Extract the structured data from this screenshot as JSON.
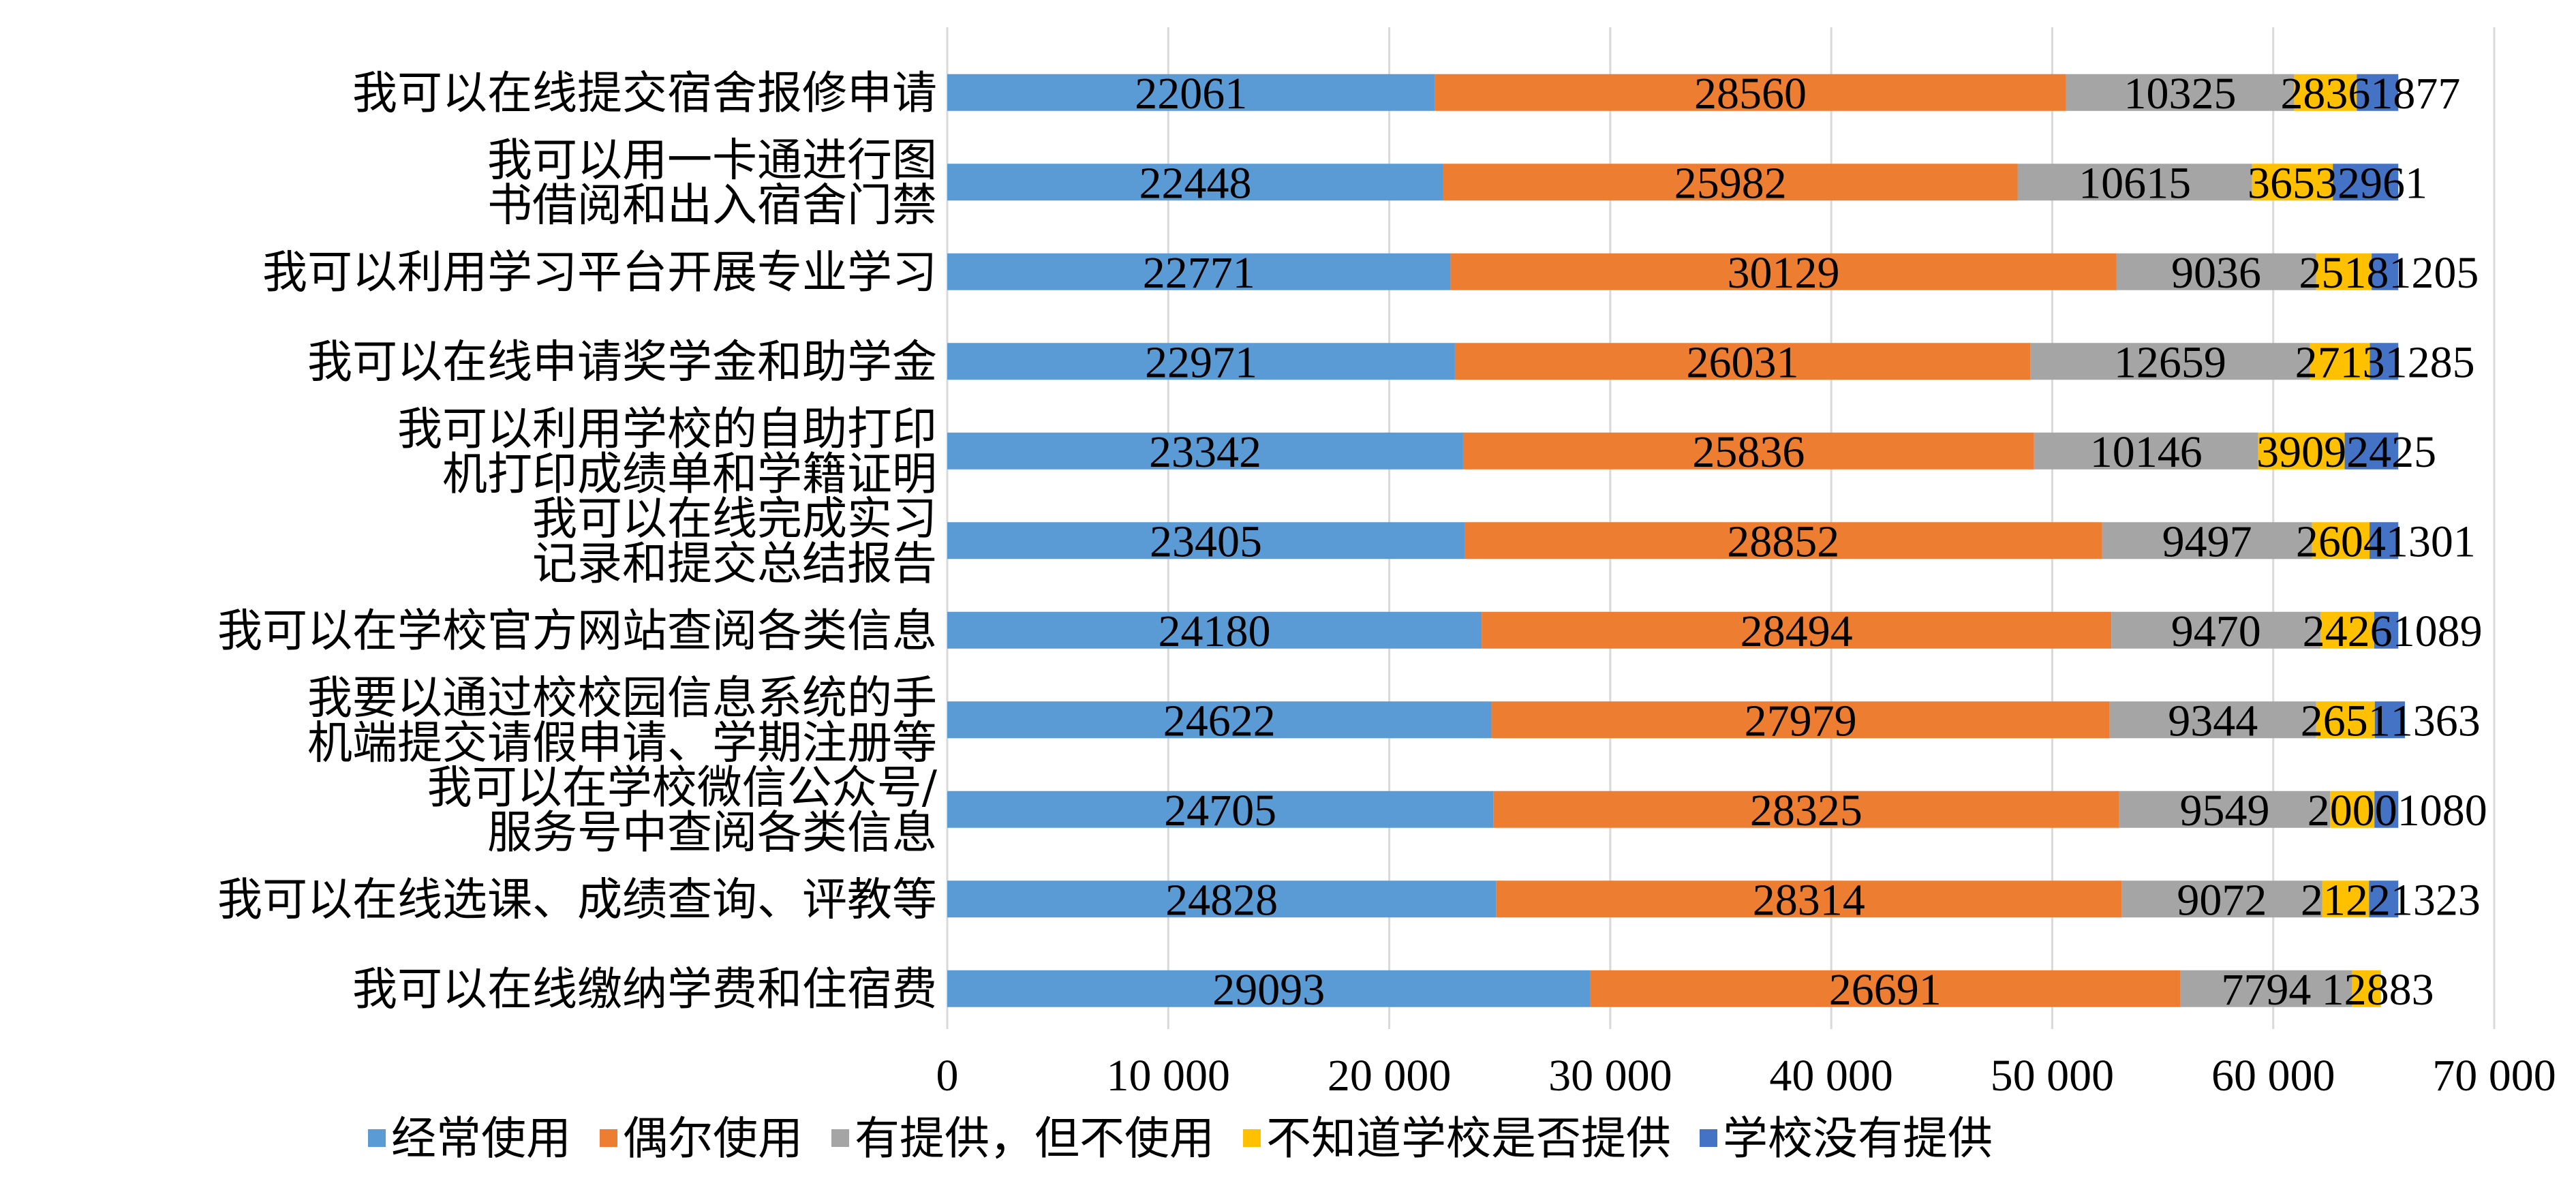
{
  "chart_data": {
    "type": "bar",
    "orientation": "horizontal",
    "stacked": true,
    "categories": [
      [
        "我可以在线提交宿舍报修申请"
      ],
      [
        "我可以用一卡通进行图",
        "书借阅和出入宿舍门禁"
      ],
      [
        "我可以利用学习平台开展专业学习"
      ],
      [
        "我可以在线申请奖学金和助学金"
      ],
      [
        "我可以利用学校的自助打印",
        "机打印成绩单和学籍证明"
      ],
      [
        "我可以在线完成实习",
        "记录和提交总结报告"
      ],
      [
        "我可以在学校官方网站查阅各类信息"
      ],
      [
        "我要以通过校校园信息系统的手",
        "机端提交请假申请、学期注册等"
      ],
      [
        "我可以在学校微信公众号/",
        "服务号中查阅各类信息"
      ],
      [
        "我可以在线选课、成绩查询、评教等"
      ],
      [
        "我可以在线缴纳学费和住宿费"
      ]
    ],
    "series": [
      {
        "name": "经常使用",
        "color": "#5B9BD5",
        "values": [
          22061,
          22448,
          22771,
          22971,
          23342,
          23405,
          24180,
          24622,
          24705,
          24828,
          29093
        ],
        "labels": [
          "22061",
          "22448",
          "22771",
          "22971",
          "23342",
          "23405",
          "24180",
          "24622",
          "24705",
          "24828",
          "29093"
        ]
      },
      {
        "name": "偶尔使用",
        "color": "#ED7D31",
        "values": [
          28560,
          25982,
          30129,
          26031,
          25836,
          28852,
          28494,
          27979,
          28325,
          28314,
          26691
        ],
        "labels": [
          "28560",
          "25982",
          "30129",
          "26031",
          "25836",
          "28852",
          "28494",
          "27979",
          "28325",
          "28314",
          "26691"
        ]
      },
      {
        "name": "有提供，但不使用",
        "color": "#A5A5A5",
        "values": [
          10325,
          10615,
          9036,
          12659,
          10146,
          9497,
          9470,
          9344,
          9549,
          9072,
          7794
        ],
        "labels": [
          "10325",
          "10615",
          "9036",
          "12659",
          "10146",
          "9497",
          "9470",
          "9344",
          "9549",
          "9072",
          "7794"
        ]
      },
      {
        "name": "不知道学校是否提供",
        "color": "#FFC000",
        "values": [
          2836,
          3653,
          2518,
          2713,
          3909,
          2604,
          2426,
          2651,
          2000,
          2122,
          1288
        ],
        "labels": [
          "2836",
          "3653",
          "2518",
          "2713",
          "3909",
          "2604",
          "2426",
          "2651",
          "2000",
          "2122",
          "1288"
        ]
      },
      {
        "name": "学校没有提供",
        "color": "#4472C4",
        "values": [
          1877,
          2961,
          1205,
          1285,
          2425,
          1301,
          1089,
          1363,
          1080,
          1323,
          3
        ],
        "labels": [
          "1877",
          "2961",
          "1205",
          "1285",
          "2425",
          "1301",
          "1089",
          "1363",
          "1080",
          "1323",
          "3"
        ]
      }
    ],
    "x_ticks": [
      0,
      10000,
      20000,
      30000,
      40000,
      50000,
      60000,
      70000
    ],
    "x_tick_labels": [
      "0",
      "10 000",
      "20 000",
      "30 000",
      "40 000",
      "50 000",
      "60 000",
      "70 000"
    ],
    "xlim": [
      0,
      70000
    ],
    "grid": "vertical",
    "legend_position": "bottom",
    "title": "",
    "xlabel": "",
    "ylabel": ""
  }
}
